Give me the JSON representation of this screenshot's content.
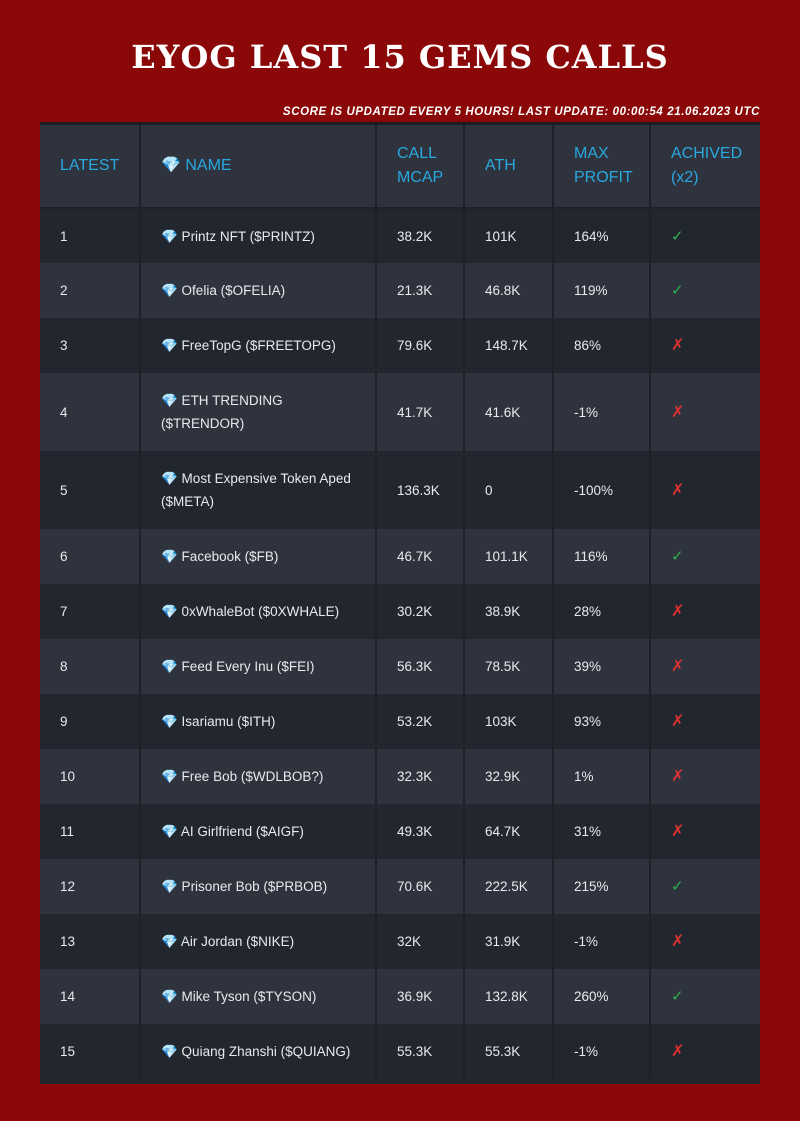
{
  "header": {
    "title": "EYOG LAST 15 GEMS CALLS",
    "update_note": "SCORE IS UPDATED EVERY 5 HOURS! LAST UPDATE: 00:00:54 21.06.2023 UTC"
  },
  "table": {
    "columns": [
      "LATEST",
      "💎 NAME",
      "CALL MCAP",
      "ATH",
      "MAX PROFIT",
      "ACHIVED (x2)"
    ],
    "rows": [
      {
        "latest": "1",
        "name": "💎 Printz NFT ($PRINTZ)",
        "call_mcap": "38.2K",
        "ath": "101K",
        "max_profit": "164%",
        "achieved": "✓",
        "achieved_ok": true
      },
      {
        "latest": "2",
        "name": "💎 Ofelia ($OFELIA)",
        "call_mcap": "21.3K",
        "ath": "46.8K",
        "max_profit": "119%",
        "achieved": "✓",
        "achieved_ok": true
      },
      {
        "latest": "3",
        "name": "💎 FreeTopG ($FREETOPG)",
        "call_mcap": "79.6K",
        "ath": "148.7K",
        "max_profit": "86%",
        "achieved": "✗",
        "achieved_ok": false
      },
      {
        "latest": "4",
        "name": "💎 ETH TRENDING ($TRENDOR)",
        "call_mcap": "41.7K",
        "ath": "41.6K",
        "max_profit": "-1%",
        "achieved": "✗",
        "achieved_ok": false
      },
      {
        "latest": "5",
        "name": "💎 Most Expensive Token Aped ($META)",
        "call_mcap": "136.3K",
        "ath": "0",
        "max_profit": "-100%",
        "achieved": "✗",
        "achieved_ok": false
      },
      {
        "latest": "6",
        "name": "💎 Facebook ($FB)",
        "call_mcap": "46.7K",
        "ath": "101.1K",
        "max_profit": "116%",
        "achieved": "✓",
        "achieved_ok": true
      },
      {
        "latest": "7",
        "name": "💎 0xWhaleBot ($0XWHALE)",
        "call_mcap": "30.2K",
        "ath": "38.9K",
        "max_profit": "28%",
        "achieved": "✗",
        "achieved_ok": false
      },
      {
        "latest": "8",
        "name": "💎 Feed Every Inu ($FEI)",
        "call_mcap": "56.3K",
        "ath": "78.5K",
        "max_profit": "39%",
        "achieved": "✗",
        "achieved_ok": false
      },
      {
        "latest": "9",
        "name": "💎 Isariamu ($ITH)",
        "call_mcap": "53.2K",
        "ath": "103K",
        "max_profit": "93%",
        "achieved": "✗",
        "achieved_ok": false
      },
      {
        "latest": "10",
        "name": "💎 Free Bob ($WDLBOB?)",
        "call_mcap": "32.3K",
        "ath": "32.9K",
        "max_profit": "1%",
        "achieved": "✗",
        "achieved_ok": false
      },
      {
        "latest": "11",
        "name": "💎 AI Girlfriend ($AIGF)",
        "call_mcap": "49.3K",
        "ath": "64.7K",
        "max_profit": "31%",
        "achieved": "✗",
        "achieved_ok": false
      },
      {
        "latest": "12",
        "name": "💎 Prisoner Bob ($PRBOB)",
        "call_mcap": "70.6K",
        "ath": "222.5K",
        "max_profit": "215%",
        "achieved": "✓",
        "achieved_ok": true
      },
      {
        "latest": "13",
        "name": "💎 Air Jordan ($NIKE)",
        "call_mcap": "32K",
        "ath": "31.9K",
        "max_profit": "-1%",
        "achieved": "✗",
        "achieved_ok": false
      },
      {
        "latest": "14",
        "name": "💎 Mike Tyson ($TYSON)",
        "call_mcap": "36.9K",
        "ath": "132.8K",
        "max_profit": "260%",
        "achieved": "✓",
        "achieved_ok": true
      },
      {
        "latest": "15",
        "name": "💎 Quiang Zhanshi ($QUIANG)",
        "call_mcap": "55.3K",
        "ath": "55.3K",
        "max_profit": "-1%",
        "achieved": "✗",
        "achieved_ok": false
      }
    ]
  },
  "colors": {
    "background": "#8b0808",
    "header_text": "#2aa8e0",
    "ok": "#2bb24c",
    "bad": "#e03232"
  }
}
